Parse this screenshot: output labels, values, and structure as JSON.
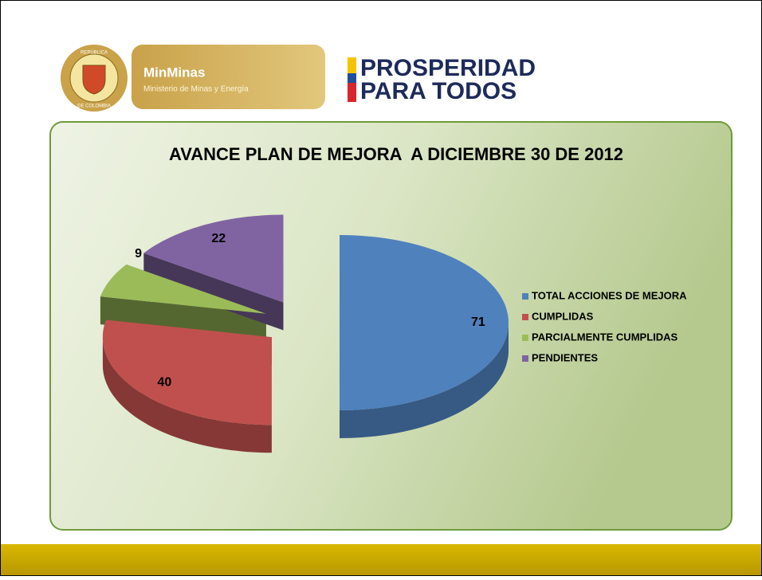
{
  "header": {
    "seal_top": "REPÚBLICA",
    "seal_bottom": "DE COLOMBIA",
    "brand": "MinMinas",
    "brand_subtitle": "Ministerio de Minas y Energía",
    "slogan_line1": "PROSPERIDAD",
    "slogan_line2": "PARA TODOS"
  },
  "chart_data": {
    "type": "pie",
    "title": "AVANCE PLAN DE MEJORA  A DICIEMBRE 30 DE 2012",
    "categories": [
      "TOTAL ACCIONES DE MEJORA",
      "CUMPLIDAS",
      "PARCIALMENTE CUMPLIDAS",
      "PENDIENTES"
    ],
    "values": [
      71,
      40,
      9,
      22
    ],
    "colors": [
      "#4f81bd",
      "#c0504d",
      "#9bbb59",
      "#8064a2"
    ],
    "legend": "right"
  }
}
